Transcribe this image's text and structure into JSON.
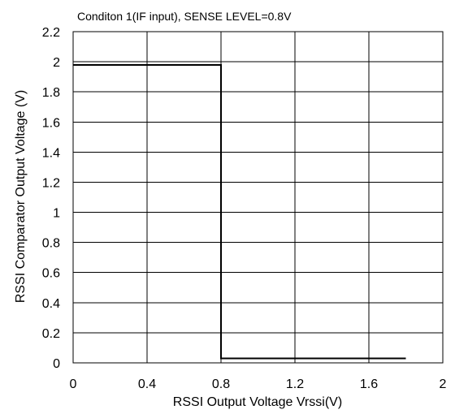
{
  "chart_data": {
    "type": "line",
    "title": "Conditon 1(IF input), SENSE LEVEL=0.8V",
    "xlabel": "RSSI Output Voltage Vrssi(V)",
    "ylabel": "RSSI Comparator Output Voltage (V)",
    "xlim": [
      0,
      2
    ],
    "ylim": [
      0,
      2.2
    ],
    "grid": true,
    "x_ticks": [
      "0",
      "0.4",
      "0.8",
      "1.2",
      "1.6",
      "2"
    ],
    "y_ticks": [
      "0",
      "0.2",
      "0.4",
      "0.6",
      "0.8",
      "1",
      "1.2",
      "1.4",
      "1.6",
      "1.8",
      "2",
      "2.2"
    ],
    "series": [
      {
        "x": [
          0,
          0.8,
          0.8,
          1.8
        ],
        "y": [
          1.98,
          1.98,
          0.03,
          0.03
        ],
        "color": "#000000"
      }
    ]
  }
}
